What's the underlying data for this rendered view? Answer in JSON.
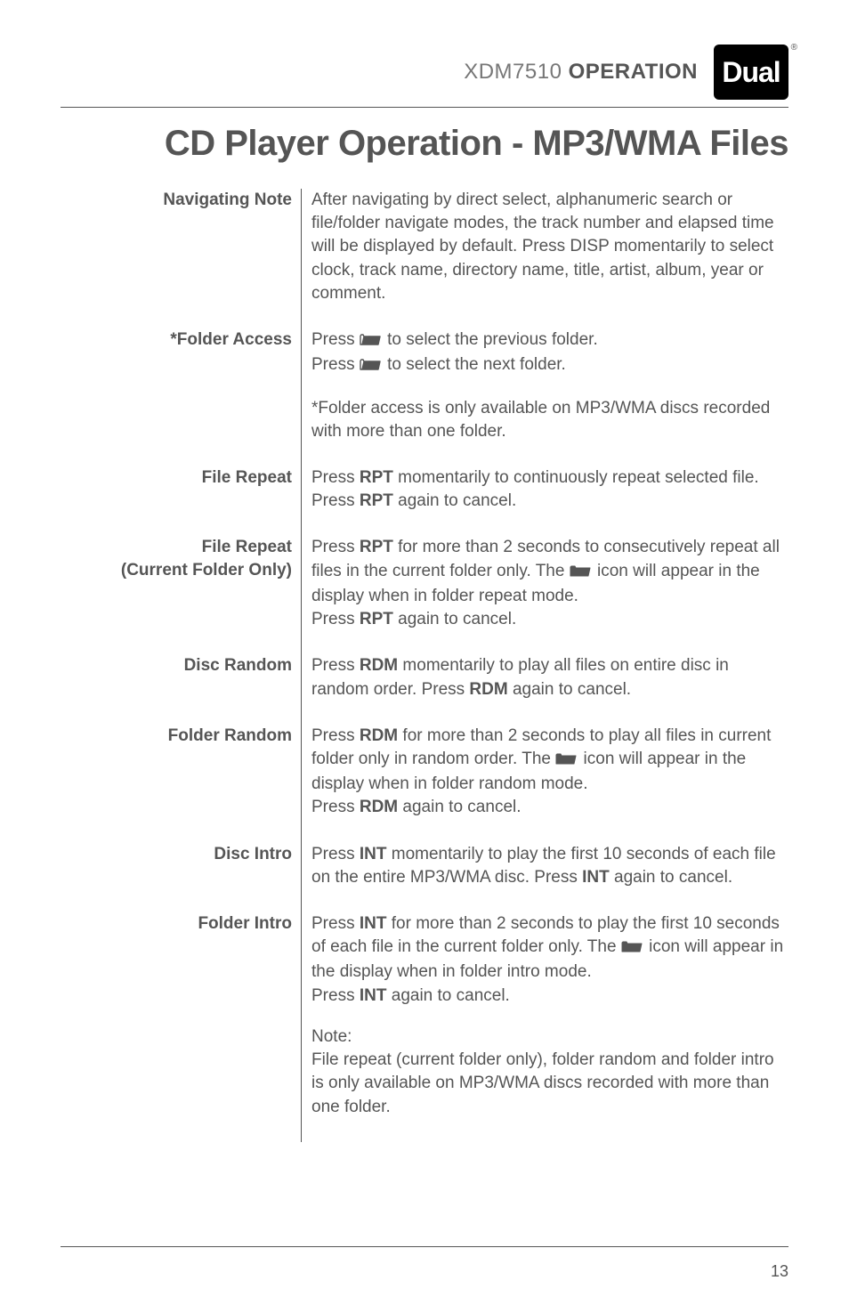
{
  "header": {
    "model": "XDM7510",
    "operation": "OPERATION",
    "logo": "Dual"
  },
  "title": "CD Player Operation - MP3/WMA Files",
  "icons": {
    "folder_down_color": "#555555",
    "folder_up_color": "#555555",
    "folder_plain_color": "#555555"
  },
  "rows": [
    {
      "label": "Navigating Note",
      "paras": [
        {
          "t": "After navigating by direct select, alphanumeric search or file/folder navigate modes, the track number and elapsed time will be displayed by default. Press DISP momentarily to select clock, track name, directory name, title, artist, album, year or comment."
        }
      ]
    },
    {
      "label": "*Folder Access",
      "paras": [
        {
          "t": "Press {folder_down} to select the previous folder.\nPress {folder_up} to select the next folder."
        },
        {
          "t": "*Folder access is only available on MP3/WMA discs recorded with more than one folder."
        }
      ]
    },
    {
      "label": "File Repeat",
      "paras": [
        {
          "t": "Press **RPT** momentarily to continuously repeat selected file. Press **RPT** again to cancel."
        }
      ]
    },
    {
      "label": "File Repeat\n(Current Folder Only)",
      "paras": [
        {
          "t": "Press **RPT** for more than 2 seconds to consecutively repeat all files in the current folder only. The {folder} icon will appear in the display when in folder repeat mode.\nPress **RPT** again to cancel."
        }
      ]
    },
    {
      "label": "Disc Random",
      "paras": [
        {
          "t": "Press **RDM** momentarily to play all files on entire disc in random order. Press **RDM** again to cancel."
        }
      ]
    },
    {
      "label": "Folder Random",
      "paras": [
        {
          "t": "Press **RDM** for more than 2 seconds to play all files in current folder only in random order. The {folder} icon will appear in the display when in folder random mode.\nPress **RDM** again to cancel."
        }
      ]
    },
    {
      "label": "Disc Intro",
      "paras": [
        {
          "t": "Press **INT** momentarily to play the first 10 seconds of each file on the entire MP3/WMA disc. Press **INT** again to cancel."
        }
      ]
    },
    {
      "label": "Folder Intro",
      "paras": [
        {
          "t": "Press **INT** for more than 2 seconds to play the first 10 seconds of each file in the current folder only. The {folder} icon will appear in the display when in folder intro mode.\nPress **INT** again to cancel."
        },
        {
          "t": "Note:\nFile repeat (current folder only), folder random and folder intro is only available on MP3/WMA discs recorded with more than one folder."
        }
      ]
    }
  ],
  "page_number": "13"
}
